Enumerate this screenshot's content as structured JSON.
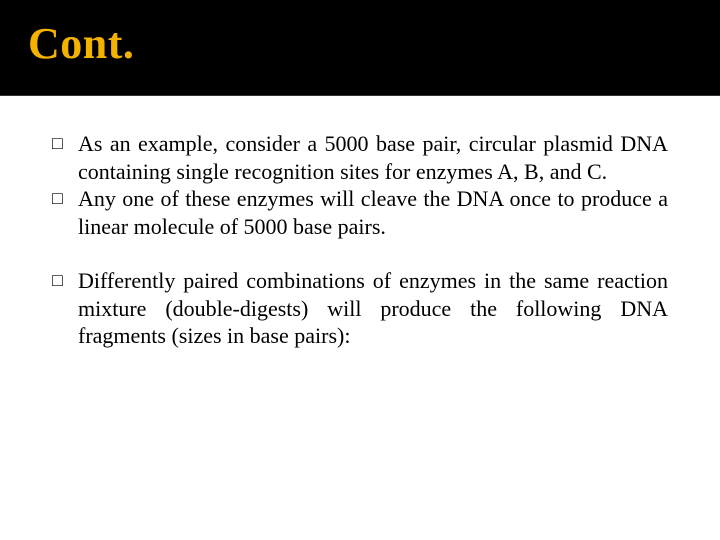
{
  "slide": {
    "title": "Cont.",
    "title_color": "#f3b200",
    "header_bg": "#000000",
    "body_bg": "#ffffff",
    "body_font_size": 22,
    "title_font_size": 44,
    "bullet_marker": "□",
    "bullets": [
      {
        "lead": "As an example, consider a 5000 base pair, circular plasmid DNA containing single recognition sites for enzymes A, B, and C.",
        "continuation": null
      },
      {
        "lead": "Any one of these enzymes will cleave the DNA once to produce a linear molecule of 5000 base pairs.",
        "continuation": null
      },
      {
        "lead": "Differently paired combinations of enzymes in the same reaction mixture (double-digests) will produce the following DNA fragments (sizes in base pairs):",
        "continuation": null
      }
    ]
  }
}
